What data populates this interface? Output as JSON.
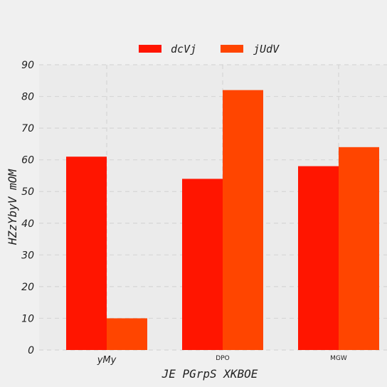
{
  "chart_data": {
    "type": "bar",
    "title": "",
    "xlabel": "JE PGrpS XKBOE",
    "ylabel": "HZzYbyV  mOM",
    "categories": [
      "yMy",
      "DPO",
      "MGW"
    ],
    "series": [
      {
        "name": "dcVj",
        "values": [
          61,
          54,
          58
        ],
        "color": "#ff1500"
      },
      {
        "name": "jUdV",
        "values": [
          10,
          82,
          64
        ],
        "color": "#ff4500"
      }
    ],
    "ylim": [
      0,
      90
    ],
    "yticks": [
      "0",
      "10",
      "20",
      "30",
      "40",
      "50",
      "60",
      "70",
      "80",
      "90"
    ],
    "grid": true,
    "legend_position": "top-center",
    "background": "#f0f0f0",
    "plot_background": "#ebebeb"
  }
}
